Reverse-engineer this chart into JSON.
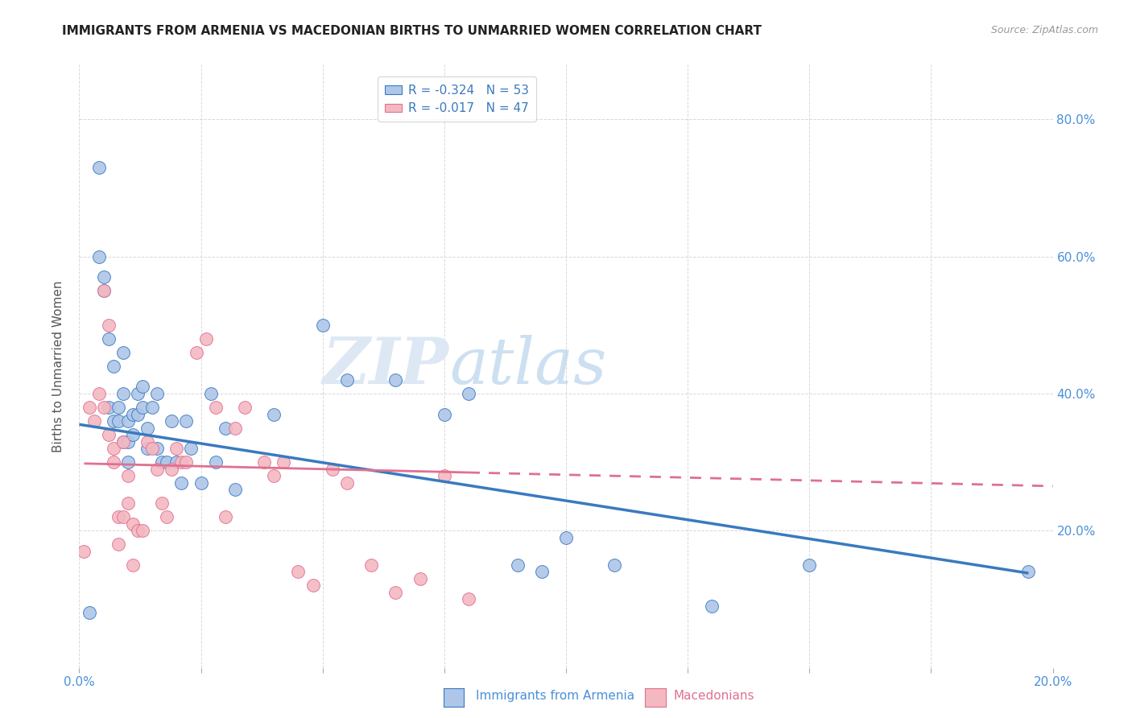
{
  "title": "IMMIGRANTS FROM ARMENIA VS MACEDONIAN BIRTHS TO UNMARRIED WOMEN CORRELATION CHART",
  "source": "Source: ZipAtlas.com",
  "ylabel": "Births to Unmarried Women",
  "x_range": [
    0.0,
    0.2
  ],
  "y_range": [
    0.0,
    0.88
  ],
  "legend1_label": "R = -0.324   N = 53",
  "legend2_label": "R = -0.017   N = 47",
  "scatter1_color": "#aec6e8",
  "scatter2_color": "#f4b8c1",
  "line1_color": "#3a7abf",
  "line2_color": "#e07090",
  "watermark_zip": "ZIP",
  "watermark_atlas": "atlas",
  "background_color": "#ffffff",
  "grid_color": "#d8d8d8",
  "series1_x": [
    0.002,
    0.004,
    0.004,
    0.005,
    0.005,
    0.006,
    0.006,
    0.007,
    0.007,
    0.008,
    0.008,
    0.009,
    0.009,
    0.009,
    0.01,
    0.01,
    0.01,
    0.011,
    0.011,
    0.012,
    0.012,
    0.013,
    0.013,
    0.014,
    0.014,
    0.015,
    0.016,
    0.016,
    0.017,
    0.018,
    0.019,
    0.02,
    0.021,
    0.022,
    0.023,
    0.025,
    0.027,
    0.028,
    0.03,
    0.032,
    0.04,
    0.05,
    0.055,
    0.065,
    0.075,
    0.08,
    0.09,
    0.095,
    0.1,
    0.11,
    0.13,
    0.15,
    0.195
  ],
  "series1_y": [
    0.08,
    0.73,
    0.6,
    0.57,
    0.55,
    0.48,
    0.38,
    0.44,
    0.36,
    0.38,
    0.36,
    0.46,
    0.4,
    0.33,
    0.36,
    0.33,
    0.3,
    0.37,
    0.34,
    0.4,
    0.37,
    0.41,
    0.38,
    0.35,
    0.32,
    0.38,
    0.4,
    0.32,
    0.3,
    0.3,
    0.36,
    0.3,
    0.27,
    0.36,
    0.32,
    0.27,
    0.4,
    0.3,
    0.35,
    0.26,
    0.37,
    0.5,
    0.42,
    0.42,
    0.37,
    0.4,
    0.15,
    0.14,
    0.19,
    0.15,
    0.09,
    0.15,
    0.14
  ],
  "series2_x": [
    0.001,
    0.002,
    0.003,
    0.004,
    0.005,
    0.005,
    0.006,
    0.006,
    0.007,
    0.007,
    0.008,
    0.008,
    0.009,
    0.009,
    0.01,
    0.01,
    0.011,
    0.011,
    0.012,
    0.013,
    0.014,
    0.015,
    0.016,
    0.017,
    0.018,
    0.019,
    0.02,
    0.021,
    0.022,
    0.024,
    0.026,
    0.028,
    0.03,
    0.032,
    0.034,
    0.038,
    0.04,
    0.042,
    0.045,
    0.048,
    0.052,
    0.055,
    0.06,
    0.065,
    0.07,
    0.075,
    0.08
  ],
  "series2_y": [
    0.17,
    0.38,
    0.36,
    0.4,
    0.38,
    0.55,
    0.5,
    0.34,
    0.32,
    0.3,
    0.22,
    0.18,
    0.33,
    0.22,
    0.24,
    0.28,
    0.21,
    0.15,
    0.2,
    0.2,
    0.33,
    0.32,
    0.29,
    0.24,
    0.22,
    0.29,
    0.32,
    0.3,
    0.3,
    0.46,
    0.48,
    0.38,
    0.22,
    0.35,
    0.38,
    0.3,
    0.28,
    0.3,
    0.14,
    0.12,
    0.29,
    0.27,
    0.15,
    0.11,
    0.13,
    0.28,
    0.1
  ],
  "line1_x0": 0.0,
  "line1_y0": 0.355,
  "line1_x1": 0.195,
  "line1_y1": 0.138,
  "line2_x0": 0.001,
  "line2_y0": 0.298,
  "line2_x1": 0.2,
  "line2_y1": 0.265
}
